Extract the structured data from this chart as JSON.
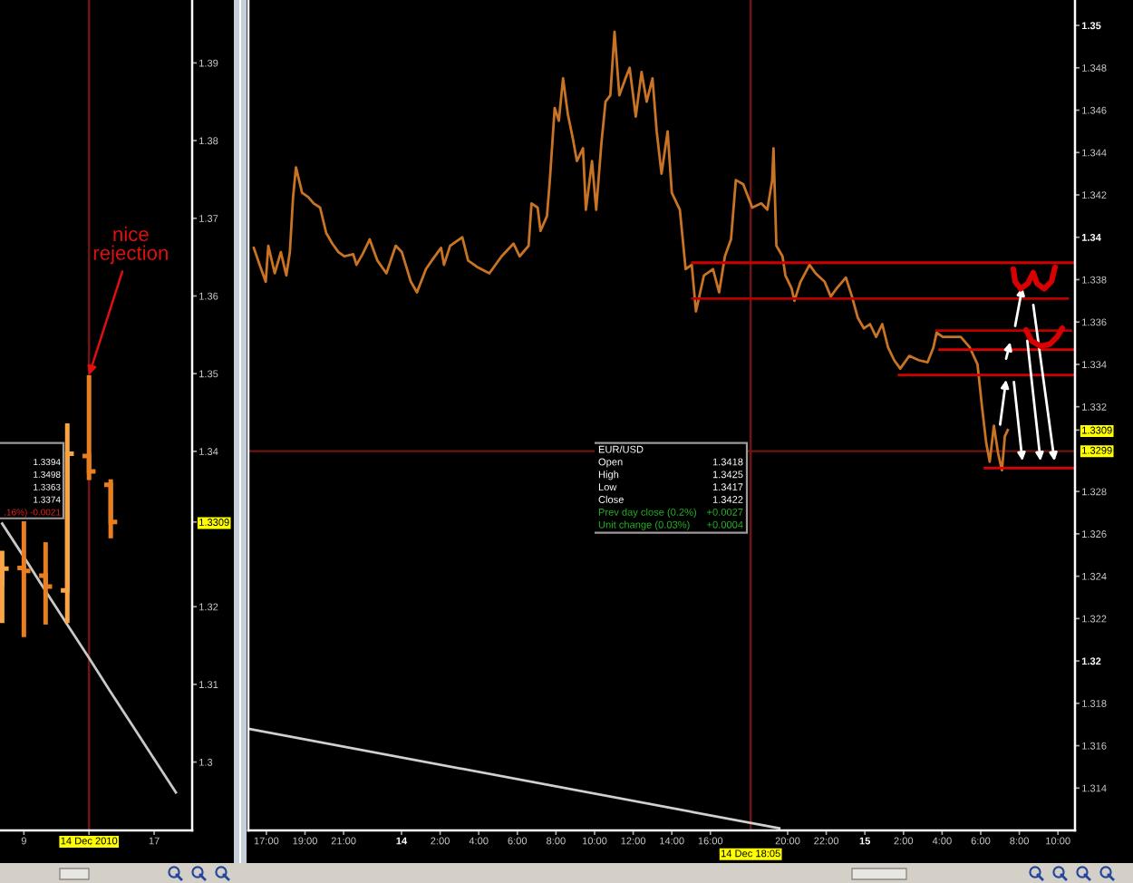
{
  "chart_data": [
    {
      "type": "candlestick",
      "colors": [
        "#f9a445",
        "#e97e1e",
        "#e97e1e",
        "#f9a445",
        "#e97e1e",
        "#e97e1e",
        null,
        null,
        null
      ],
      "categories": [
        null,
        "9",
        null,
        null,
        "14 Dec 2010",
        null,
        null,
        "17",
        null
      ],
      "ohlc": [
        [
          1.323,
          1.3272,
          1.3179,
          1.3249
        ],
        [
          1.325,
          1.331,
          1.3161,
          1.3246
        ],
        [
          1.324,
          1.3283,
          1.3177,
          1.3226
        ],
        [
          1.3221,
          1.3436,
          1.3179,
          1.3397
        ],
        [
          1.3394,
          1.3498,
          1.3363,
          1.3374
        ],
        [
          1.3357,
          1.3364,
          1.3288,
          1.3309
        ],
        null,
        null,
        null
      ],
      "series": [
        {
          "type": "line",
          "color": "#c8c8c8",
          "values": [
            1.3307,
            1.3264,
            1.322,
            1.3177,
            1.3134,
            1.309,
            1.3047,
            1.3004,
            1.2961
          ]
        }
      ],
      "ylim": [
        1.2912,
        1.3981
      ],
      "yticks": [
        1.3,
        1.31,
        1.32,
        {
          "value": 1.3309,
          "label": "1.3309"
        },
        1.34,
        1.35,
        1.36,
        1.37,
        1.38,
        1.39
      ],
      "ref_lines": [
        {
          "axis": "x",
          "value": "14 Dec 2010",
          "color": "#6e1414"
        }
      ],
      "annotations": [
        "1.3394",
        "1.3498",
        "1.3363",
        "1.3374",
        ".16%) -0.0021",
        {
          "text": "nice rejection",
          "x": "14 Dec 2010",
          "y": 1.3498
        }
      ]
    },
    {
      "type": "line",
      "series": [
        {
          "color": "#c87424",
          "x": [
            "2010-12-13T16:21",
            "2010-12-13T16:39",
            "2010-12-13T16:58",
            "2010-12-13T17:06",
            "2010-12-13T17:26",
            "2010-12-13T17:45",
            "2010-12-13T18:02",
            "2010-12-13T18:13",
            "2010-12-13T18:23",
            "2010-12-13T18:32",
            "2010-12-13T18:51",
            "2010-12-13T19:10",
            "2010-12-13T19:27",
            "2010-12-13T19:47",
            "2010-12-13T20:06",
            "2010-12-13T20:25",
            "2010-12-13T20:44",
            "2010-12-13T21:02",
            "2010-12-13T21:30",
            "2010-12-13T21:40",
            "2010-12-13T21:59",
            "2010-12-13T22:21",
            "2010-12-13T22:45",
            "2010-12-13T23:13",
            "2010-12-13T23:42",
            "2010-12-14T00:01",
            "2010-12-14T00:29",
            "2010-12-14T00:48",
            "2010-12-14T01:16",
            "2010-12-14T01:34",
            "2010-12-14T02:03",
            "2010-12-14T02:12",
            "2010-12-14T02:31",
            "2010-12-14T03:09",
            "2010-12-14T03:27",
            "2010-12-14T03:55",
            "2010-12-14T04:33",
            "2010-12-14T05:11",
            "2010-12-14T05:48",
            "2010-12-14T06:07",
            "2010-12-14T06:35",
            "2010-12-14T06:44",
            "2010-12-14T07:03",
            "2010-12-14T07:12",
            "2010-12-14T07:32",
            "2010-12-14T07:41",
            "2010-12-14T07:56",
            "2010-12-14T08:09",
            "2010-12-14T08:22",
            "2010-12-14T08:37",
            "2010-12-14T08:52",
            "2010-12-14T09:05",
            "2010-12-14T09:24",
            "2010-12-14T09:33",
            "2010-12-14T09:52",
            "2010-12-14T10:05",
            "2010-12-14T10:21",
            "2010-12-14T10:34",
            "2010-12-14T10:49",
            "2010-12-14T11:02",
            "2010-12-14T11:17",
            "2010-12-14T11:36",
            "2010-12-14T11:49",
            "2010-12-14T12:08",
            "2010-12-14T12:26",
            "2010-12-14T12:42",
            "2010-12-14T13:00",
            "2010-12-14T13:13",
            "2010-12-14T13:28",
            "2010-12-14T13:47",
            "2010-12-14T14:00",
            "2010-12-14T14:25",
            "2010-12-14T14:43",
            "2010-12-14T15:02",
            "2010-12-14T15:15",
            "2010-12-14T15:40",
            "2010-12-14T16:08",
            "2010-12-14T16:27",
            "2010-12-14T16:45",
            "2010-12-14T17:04",
            "2010-12-14T17:19",
            "2010-12-14T17:42",
            "2010-12-14T18:10",
            "2010-12-14T18:38",
            "2010-12-14T18:57",
            "2010-12-14T19:12",
            "2010-12-14T19:16",
            "2010-12-14T19:25",
            "2010-12-14T19:44",
            "2010-12-14T19:53",
            "2010-12-14T20:12",
            "2010-12-14T20:21",
            "2010-12-14T20:40",
            "2010-12-14T21:08",
            "2010-12-14T21:27",
            "2010-12-14T21:55",
            "2010-12-14T22:14",
            "2010-12-14T22:33",
            "2010-12-14T23:01",
            "2010-12-14T23:20",
            "2010-12-14T23:38",
            "2010-12-14T23:57",
            "2010-12-15T00:16",
            "2010-12-15T00:35",
            "2010-12-15T00:54",
            "2010-12-15T01:12",
            "2010-12-15T01:31",
            "2010-12-15T01:50",
            "2010-12-15T02:18",
            "2010-12-15T02:47",
            "2010-12-15T03:15",
            "2010-12-15T03:33",
            "2010-12-15T03:43",
            "2010-12-15T04:02",
            "2010-12-15T04:30",
            "2010-12-15T04:58",
            "2010-12-15T05:26",
            "2010-12-15T05:50",
            "2010-12-15T06:04",
            "2010-12-15T06:17",
            "2010-12-15T06:28",
            "2010-12-15T06:41",
            "2010-12-15T06:54",
            "2010-12-15T07:06",
            "2010-12-15T07:15",
            "2010-12-15T07:24"
          ],
          "values": [
            1.3395,
            1.3387,
            1.3379,
            1.3396,
            1.3383,
            1.3393,
            1.3382,
            1.3393,
            1.3419,
            1.3433,
            1.3421,
            1.3419,
            1.3416,
            1.3414,
            1.3402,
            1.3397,
            1.3393,
            1.3391,
            1.3392,
            1.3387,
            1.3392,
            1.3399,
            1.3389,
            1.3383,
            1.3396,
            1.3393,
            1.3379,
            1.3374,
            1.3385,
            1.3389,
            1.3395,
            1.3387,
            1.3396,
            1.34,
            1.3389,
            1.3386,
            1.3383,
            1.3391,
            1.3397,
            1.3391,
            1.3396,
            1.3416,
            1.3414,
            1.3403,
            1.341,
            1.3427,
            1.3461,
            1.3455,
            1.3475,
            1.3458,
            1.3447,
            1.3436,
            1.3442,
            1.3413,
            1.3436,
            1.3413,
            1.3444,
            1.3464,
            1.3467,
            1.3497,
            1.3467,
            1.3475,
            1.348,
            1.3457,
            1.3478,
            1.3464,
            1.3475,
            1.345,
            1.343,
            1.345,
            1.3421,
            1.3413,
            1.3385,
            1.3387,
            1.3365,
            1.3382,
            1.3385,
            1.3374,
            1.3391,
            1.3399,
            1.3427,
            1.3425,
            1.3414,
            1.3416,
            1.3413,
            1.3427,
            1.3442,
            1.3396,
            1.3391,
            1.3382,
            1.3376,
            1.337,
            1.3379,
            1.3387,
            1.3383,
            1.3379,
            1.3372,
            1.3376,
            1.3381,
            1.3372,
            1.3362,
            1.3357,
            1.3359,
            1.3353,
            1.3359,
            1.3348,
            1.3342,
            1.3338,
            1.3344,
            1.3342,
            1.3341,
            1.3348,
            1.3355,
            1.3353,
            1.3353,
            1.3353,
            1.3348,
            1.334,
            1.332,
            1.3303,
            1.3294,
            1.3311,
            1.3298,
            1.329,
            1.3306,
            1.3309
          ]
        },
        {
          "color": "#d0d0d0",
          "x": [
            "2010-12-13T16:04",
            "2010-12-14T19:34"
          ],
          "values": [
            1.3168,
            1.3121
          ]
        },
        {
          "color": "#d00000",
          "x": [
            "2010-12-14T15:04",
            "2010-12-15T10:47"
          ],
          "values": [
            1.3388,
            1.3388
          ]
        },
        {
          "color": "#b80000",
          "x": [
            "2010-12-14T15:04",
            "2010-12-15T10:30"
          ],
          "values": [
            1.3371,
            1.3371
          ]
        },
        {
          "color": "#b80000",
          "x": [
            "2010-12-15T03:43",
            "2010-12-15T10:40"
          ],
          "values": [
            1.3356,
            1.3356
          ]
        },
        {
          "color": "#e00000",
          "x": [
            "2010-12-15T03:52",
            "2010-12-15T10:47"
          ],
          "values": [
            1.3347,
            1.3347
          ]
        },
        {
          "color": "#d00000",
          "x": [
            "2010-12-15T01:46",
            "2010-12-15T10:47"
          ],
          "values": [
            1.3335,
            1.3335
          ]
        },
        {
          "color": "#e00000",
          "x": [
            "2010-12-15T06:13",
            "2010-12-15T10:47"
          ],
          "values": [
            1.3291,
            1.3291
          ]
        }
      ],
      "xlim": [
        "2010-12-13T16:04",
        "2010-12-15T10:53"
      ],
      "xticks": [
        {
          "value": "2010-12-13T17:00",
          "label": "17:00"
        },
        {
          "value": "2010-12-13T19:00",
          "label": "19:00"
        },
        {
          "value": "2010-12-13T21:00",
          "label": "21:00"
        },
        {
          "value": "2010-12-14T00:00",
          "label": "14"
        },
        {
          "value": "2010-12-14T02:00",
          "label": "2:00"
        },
        {
          "value": "2010-12-14T04:00",
          "label": "4:00"
        },
        {
          "value": "2010-12-14T06:00",
          "label": "6:00"
        },
        {
          "value": "2010-12-14T08:00",
          "label": "8:00"
        },
        {
          "value": "2010-12-14T10:00",
          "label": "10:00"
        },
        {
          "value": "2010-12-14T12:00",
          "label": "12:00"
        },
        {
          "value": "2010-12-14T14:00",
          "label": "14:00"
        },
        {
          "value": "2010-12-14T16:00",
          "label": "16:00"
        },
        {
          "value": "2010-12-14T20:00",
          "label": "20:00"
        },
        {
          "value": "2010-12-14T22:00",
          "label": "22:00"
        },
        {
          "value": "2010-12-15T00:00",
          "label": "15"
        },
        {
          "value": "2010-12-15T02:00",
          "label": "2:00"
        },
        {
          "value": "2010-12-15T04:00",
          "label": "4:00"
        },
        {
          "value": "2010-12-15T06:00",
          "label": "6:00"
        },
        {
          "value": "2010-12-15T08:00",
          "label": "8:00"
        },
        {
          "value": "2010-12-15T10:00",
          "label": "10:00"
        }
      ],
      "ylim": [
        1.312,
        1.3512
      ],
      "yticks": [
        1.314,
        1.316,
        1.318,
        1.32,
        1.322,
        1.324,
        1.326,
        1.328,
        {
          "value": 1.3309,
          "label": "1.3309"
        },
        1.332,
        1.334,
        1.336,
        1.338,
        1.34,
        1.342,
        1.344,
        1.346,
        1.348,
        1.35
      ],
      "ref_lines": [
        {
          "axis": "x",
          "value": "2010-12-14T18:05",
          "label": "14 Dec 18:05",
          "color": "#6e1414"
        },
        {
          "axis": "y",
          "value": 1.3299,
          "label": "1.3299",
          "color": "#6e1414"
        }
      ],
      "annotations": [
        "EUR/USD",
        "Open 1.3418",
        "High 1.3425",
        "Low 1.3417",
        "Close 1.3422",
        "Prev day close (0.2%) +0.0027",
        "Unit change (0.03%) +0.0004"
      ]
    }
  ]
}
